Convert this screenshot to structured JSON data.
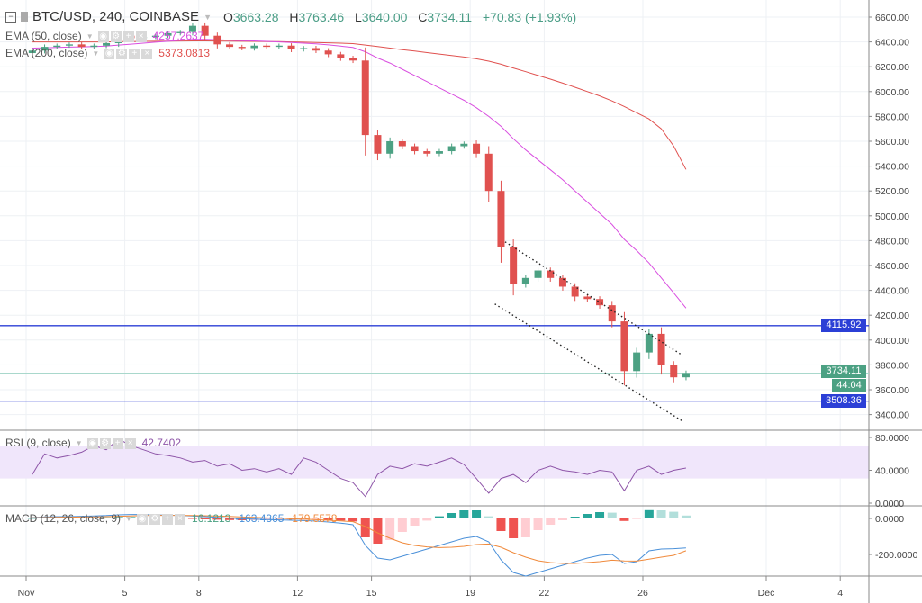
{
  "header": {
    "symbol": "BTC/USD, 240, COINBASE",
    "open_label": "O",
    "open": "3663.28",
    "high_label": "H",
    "high": "3763.46",
    "low_label": "L",
    "low": "3640.00",
    "close_label": "C",
    "close": "3734.11",
    "change": "+70.83 (+1.93%)"
  },
  "indicators": {
    "ema50": {
      "label": "EMA (50, close)",
      "value": "4257.2637",
      "color": "#d94fe0"
    },
    "ema200": {
      "label": "EMA (200, close)",
      "value": "5373.0813",
      "color": "#e0514f"
    },
    "rsi": {
      "label": "RSI (9, close)",
      "value": "42.7402",
      "color": "#8e55a8"
    },
    "macd": {
      "label": "MACD (12, 26, close, 9)",
      "hist_value": "16.1213",
      "macd_value": "-163.4365",
      "signal_value": "-179.5578",
      "macd_color": "#4a90d9",
      "signal_color": "#f08a3c"
    }
  },
  "price_tags": {
    "resistance": "4115.92",
    "current": "3734.11",
    "countdown": "44:04",
    "support": "3508.36"
  },
  "colors": {
    "up": "#4ca183",
    "down": "#e0514f",
    "hline": "#2b3fd6",
    "tag_current": "#4ca183"
  },
  "chart_data": {
    "type": "candlestick",
    "price_axis": [
      "6600.00",
      "6400.00",
      "6200.00",
      "6000.00",
      "5800.00",
      "5600.00",
      "5400.00",
      "5200.00",
      "5000.00",
      "4800.00",
      "4600.00",
      "4400.00",
      "4200.00",
      "4000.00",
      "3800.00",
      "3600.00",
      "3400.00"
    ],
    "ylim": [
      3300,
      6700
    ],
    "time_axis": [
      {
        "label": "Nov",
        "t": "2018-11-01"
      },
      {
        "label": "5",
        "t": "2018-11-05"
      },
      {
        "label": "8",
        "t": "2018-11-08"
      },
      {
        "label": "12",
        "t": "2018-11-12"
      },
      {
        "label": "15",
        "t": "2018-11-15"
      },
      {
        "label": "19",
        "t": "2018-11-19"
      },
      {
        "label": "22",
        "t": "2018-11-22"
      },
      {
        "label": "26",
        "t": "2018-11-26"
      },
      {
        "label": "Dec",
        "t": "2018-12-01"
      },
      {
        "label": "4",
        "t": "2018-12-04"
      }
    ],
    "start": "2018-11-01",
    "closes_12h": [
      6330,
      6360,
      6370,
      6380,
      6360,
      6370,
      6390,
      6450,
      6430,
      6440,
      6450,
      6470,
      6480,
      6530,
      6450,
      6380,
      6360,
      6350,
      6370,
      6360,
      6370,
      6340,
      6350,
      6330,
      6300,
      6270,
      6250,
      5650,
      5500,
      5600,
      5560,
      5520,
      5500,
      5520,
      5560,
      5580,
      5500,
      5200,
      4750,
      4450,
      4500,
      4560,
      4500,
      4430,
      4350,
      4330,
      4280,
      4150,
      3750,
      3900,
      4050,
      3800,
      3700,
      3734
    ],
    "ema50_12h": [
      6350,
      6352,
      6355,
      6358,
      6360,
      6362,
      6366,
      6375,
      6382,
      6390,
      6398,
      6405,
      6412,
      6420,
      6420,
      6418,
      6414,
      6410,
      6408,
      6404,
      6400,
      6395,
      6390,
      6384,
      6376,
      6366,
      6355,
      6320,
      6270,
      6230,
      6180,
      6130,
      6080,
      6030,
      5980,
      5930,
      5870,
      5800,
      5720,
      5620,
      5530,
      5450,
      5370,
      5290,
      5200,
      5110,
      5020,
      4930,
      4810,
      4720,
      4620,
      4500,
      4380,
      4257
    ],
    "ema200_12h": [
      6400,
      6400,
      6400,
      6400,
      6400,
      6400,
      6400,
      6402,
      6403,
      6404,
      6405,
      6406,
      6407,
      6408,
      6408,
      6407,
      6406,
      6405,
      6404,
      6403,
      6402,
      6400,
      6398,
      6396,
      6393,
      6390,
      6386,
      6375,
      6362,
      6350,
      6338,
      6326,
      6314,
      6302,
      6290,
      6278,
      6264,
      6245,
      6220,
      6190,
      6160,
      6130,
      6100,
      6068,
      6035,
      6000,
      5965,
      5925,
      5880,
      5830,
      5780,
      5700,
      5560,
      5373
    ],
    "resistance": 4115.92,
    "support": 3508.36,
    "channel_upper": [
      {
        "t": "2018-11-20T10:00",
        "p": 4790
      },
      {
        "t": "2018-11-27T14:00",
        "p": 3880
      }
    ],
    "channel_lower": [
      {
        "t": "2018-11-20T00:00",
        "p": 4290
      },
      {
        "t": "2018-11-27T14:00",
        "p": 3350
      }
    ],
    "rsi": {
      "axis": [
        "80.0000",
        "40.0000",
        "0.0000"
      ],
      "band": [
        30,
        70
      ],
      "values_12h": [
        35,
        60,
        55,
        58,
        62,
        70,
        65,
        78,
        70,
        65,
        60,
        58,
        55,
        50,
        52,
        45,
        48,
        40,
        42,
        38,
        42,
        35,
        55,
        50,
        40,
        30,
        25,
        8,
        35,
        45,
        42,
        48,
        45,
        50,
        55,
        47,
        30,
        12,
        30,
        35,
        25,
        40,
        45,
        40,
        38,
        35,
        40,
        38,
        15,
        40,
        45,
        35,
        40,
        42.74
      ]
    },
    "macd": {
      "axis": [
        "0.0000",
        "-200.0000"
      ],
      "macd_12h": [
        5,
        8,
        10,
        10,
        12,
        14,
        16,
        20,
        22,
        22,
        20,
        18,
        16,
        14,
        10,
        6,
        2,
        -2,
        -4,
        -6,
        -8,
        -10,
        -12,
        -15,
        -20,
        -26,
        -35,
        -150,
        -220,
        -230,
        -210,
        -190,
        -170,
        -150,
        -130,
        -110,
        -100,
        -130,
        -230,
        -300,
        -320,
        -300,
        -280,
        -260,
        -240,
        -220,
        -205,
        -200,
        -250,
        -240,
        -180,
        -170,
        -168,
        -163.44
      ],
      "signal_12h": [
        4,
        5,
        6,
        7,
        8,
        9,
        10,
        12,
        14,
        16,
        17,
        17,
        17,
        16,
        15,
        13,
        11,
        8,
        6,
        3,
        1,
        -2,
        -4,
        -7,
        -10,
        -14,
        -18,
        -45,
        -80,
        -110,
        -135,
        -150,
        -158,
        -162,
        -160,
        -155,
        -145,
        -142,
        -160,
        -190,
        -215,
        -235,
        -245,
        -250,
        -250,
        -245,
        -240,
        -232,
        -236,
        -237,
        -226,
        -215,
        -205,
        -179.56
      ]
    }
  }
}
